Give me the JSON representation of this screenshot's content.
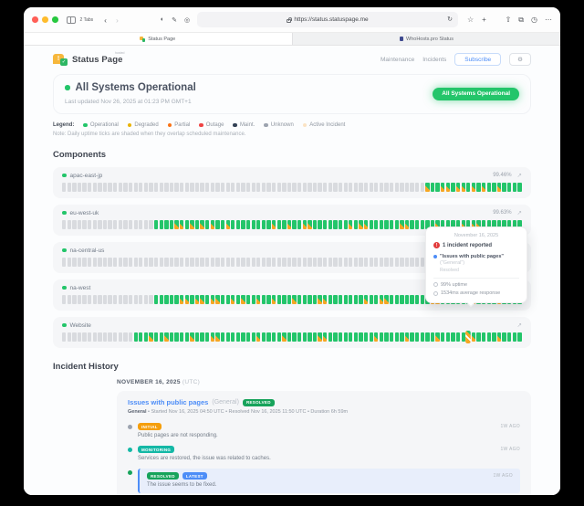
{
  "browser": {
    "tabs_count": "2 Tabs",
    "url": "https://status.statuspage.me",
    "back": "‹",
    "forward": "›",
    "icon_translate": "◐",
    "icon_pen": "✎",
    "icon_extension": "◎",
    "reload": "↻",
    "star": "☆",
    "plus": "+",
    "share": "⇧",
    "copy_tabs": "⧉",
    "history": "◷",
    "more": "⋯",
    "tab1": {
      "title": "Status Page"
    },
    "tab2": {
      "title": "WhoHosts.pro Status"
    }
  },
  "header": {
    "logo_text": "Status Page",
    "logo_sup": "hosted",
    "logo_bang": "!",
    "logo_check": "✓",
    "nav_maintenance": "Maintenance",
    "nav_incidents": "Incidents",
    "subscribe": "Subscribe",
    "gear": "⚙",
    "status_title": "All Systems Operational",
    "last_updated": "Last updated Nov 26, 2025 at 01:23 PM GMT+1",
    "status_badge": "All Systems Operational"
  },
  "legend": {
    "label": "Legend:",
    "items": [
      {
        "label": "Operational",
        "color": "#23c56a"
      },
      {
        "label": "Degraded",
        "color": "#eab308"
      },
      {
        "label": "Partial",
        "color": "#f97316"
      },
      {
        "label": "Outage",
        "color": "#ef4444"
      },
      {
        "label": "Maint.",
        "color": "#334155"
      },
      {
        "label": "Unknown",
        "color": "#9ca3af"
      },
      {
        "label": "Active Incident",
        "color": "#fbe3c4"
      }
    ],
    "note": "Note: Daily uptime ticks are shaded when they overlap scheduled maintenance."
  },
  "components": {
    "title": "Components",
    "expand_icon": "↗",
    "rows": [
      {
        "name": "apac-east-jp",
        "uptime": "99.46%",
        "pattern": "gggggggggggggggggggggggggggggggggggggggggggggggggggggggggggggggggggggggMGGMMGMMGMGMGGMGGGG"
      },
      {
        "name": "eu-west-uk",
        "uptime": "99.63%",
        "pattern": "ggggggggggggggggggGGGGMMGMGMGMGGMGGGGGGGGMGGMGGMMGGGGGGGMGMMGGGGGGMMGGGGGMGGGGMGMMGGGGGGGG"
      },
      {
        "name": "na-central-us",
        "uptime": "",
        "pattern": "ggggggggggggggggggggggggggggggggggggggggggggggggggggggggggggggggggggggggggggggggggggggGGGG"
      },
      {
        "name": "na-west",
        "uptime": "",
        "pattern": "ggggggggggggggggggGGGGGMMGMMGMMGGMGMGGMGGMGGGMGGGGMMGGGGGGGMGGMMGGGGGGGGMMGGGGGGMGGGGMGGGG"
      },
      {
        "name": "Website",
        "uptime": "",
        "pattern": "ggggggggggggggGGGMGGMGGGGMGGGMMGGGGGGGMGGGGMGGGGGGMMGGGGGGGGGMGGGGGMGGGGGMGGGGGHMGGGGMGGGG"
      }
    ]
  },
  "tooltip": {
    "date": "November 16, 2025",
    "alert": "!",
    "incident_count": "1 incident reported",
    "incident_title": "\"Issues with public pages\"",
    "incident_scope": "(\"General\")",
    "incident_status": "Resolved",
    "uptime": "99% uptime",
    "response": "1534ms average response"
  },
  "incident_history": {
    "title": "Incident History",
    "date_label": "NOVEMBER 16, 2025",
    "date_tz": "(UTC)",
    "incident": {
      "title": "Issues with public pages",
      "scope": "(General)",
      "status_badge": "RESOLVED",
      "meta_bold": "General",
      "meta_rest": " • Started Nov 16, 2025 04:50 UTC • Resolved Nov 16, 2025 11:50 UTC • Duration 6h 59m",
      "updates": [
        {
          "badge": "INITIAL",
          "badge_class": "b-initial",
          "badge2": "",
          "badge2_class": "",
          "dot": "#9ca3af",
          "text": "Public pages are not responding.",
          "ago": "1W AGO",
          "latest": false
        },
        {
          "badge": "MONITORING",
          "badge_class": "b-monitoring",
          "badge2": "",
          "badge2_class": "",
          "dot": "#14b8a6",
          "text": "Services are restored, the issue was related to caches.",
          "ago": "1W AGO",
          "latest": false
        },
        {
          "badge": "RESOLVED",
          "badge_class": "b-resolved",
          "badge2": "LATEST",
          "badge2_class": "b-latest",
          "dot": "#17a35b",
          "text": "The issue seems to be fixed.",
          "ago": "1W AGO",
          "latest": true
        }
      ]
    }
  }
}
